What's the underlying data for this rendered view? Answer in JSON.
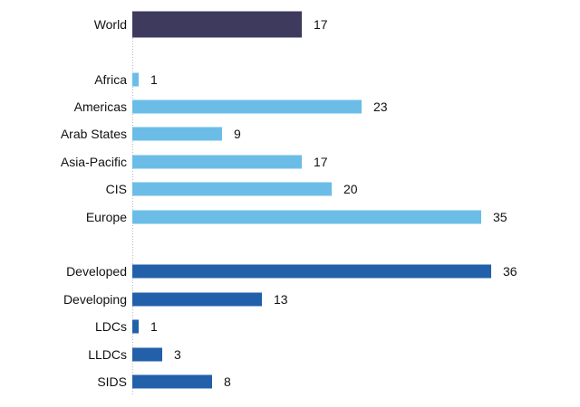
{
  "chart_data": {
    "type": "bar",
    "orientation": "horizontal",
    "categories": [
      "World",
      "Africa",
      "Americas",
      "Arab States",
      "Asia-Pacific",
      "CIS",
      "Europe",
      "Developed",
      "Developing",
      "LDCs",
      "LLDCs",
      "SIDS"
    ],
    "values": [
      17,
      1,
      23,
      9,
      17,
      20,
      35,
      36,
      13,
      1,
      3,
      8
    ],
    "groups": [
      "world",
      "region",
      "region",
      "region",
      "region",
      "region",
      "region",
      "development",
      "development",
      "development",
      "development",
      "development"
    ],
    "colors": {
      "world": "#3d3a5e",
      "region": "#6bbde8",
      "development": "#2260aa"
    },
    "title": "",
    "xlabel": "",
    "ylabel": "",
    "xlim": [
      0,
      40
    ],
    "grid": false,
    "data_labels": true
  }
}
